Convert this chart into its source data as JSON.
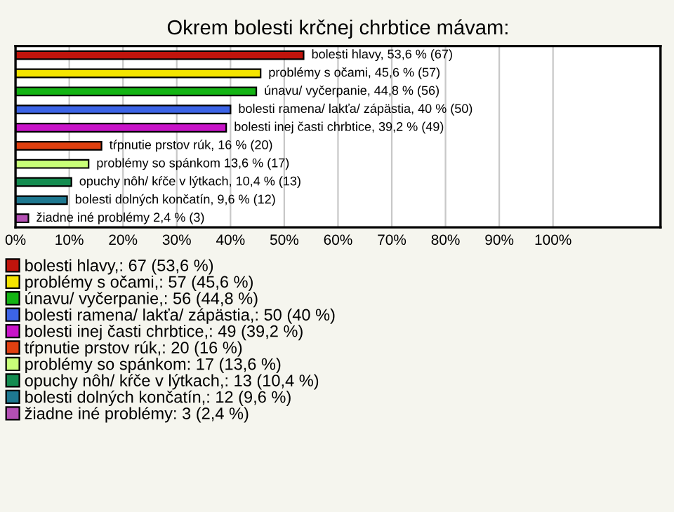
{
  "chart_data": {
    "type": "bar",
    "orientation": "horizontal",
    "title": "Okrem bolesti krčnej chrbtice mávam:",
    "categories": [
      null,
      null,
      null,
      null,
      null,
      null,
      null,
      null,
      null,
      null
    ],
    "series": [
      {
        "name": "bolesti hlavy,: 67 (53,6 %)",
        "color": "#c0140c",
        "values": [
          53.6,
          null,
          null,
          null,
          null,
          null,
          null,
          null,
          null,
          null
        ],
        "value_labels": [
          "bolesti hlavy, 53,6 % (67)",
          null,
          null,
          null,
          null,
          null,
          null,
          null,
          null,
          null
        ]
      },
      {
        "name": "problémy s očami,: 57 (45,6 %)",
        "color": "#f4e400",
        "values": [
          null,
          45.6,
          null,
          null,
          null,
          null,
          null,
          null,
          null,
          null
        ],
        "value_labels": [
          null,
          "problémy s očami, 45,6 % (57)",
          null,
          null,
          null,
          null,
          null,
          null,
          null,
          null
        ]
      },
      {
        "name": "únavu/ vyčerpanie,: 56 (44,8 %)",
        "color": "#14b414",
        "values": [
          null,
          null,
          44.8,
          null,
          null,
          null,
          null,
          null,
          null,
          null
        ],
        "value_labels": [
          null,
          null,
          "únavu/ vyčerpanie, 44,8 % (56)",
          null,
          null,
          null,
          null,
          null,
          null,
          null
        ]
      },
      {
        "name": "bolesti ramena/ lakťa/ zápästia,: 50 (40 %)",
        "color": "#3c64e6",
        "values": [
          null,
          null,
          null,
          40,
          null,
          null,
          null,
          null,
          null,
          null
        ],
        "value_labels": [
          null,
          null,
          null,
          "bolesti ramena/ lakťa/ zápästia, 40 % (50)",
          null,
          null,
          null,
          null,
          null,
          null
        ]
      },
      {
        "name": "bolesti inej časti chrbtice,: 49 (39,2 %)",
        "color": "#c814c8",
        "values": [
          null,
          null,
          null,
          null,
          39.2,
          null,
          null,
          null,
          null,
          null
        ],
        "value_labels": [
          null,
          null,
          null,
          null,
          "bolesti inej časti chrbtice, 39,2 % (49)",
          null,
          null,
          null,
          null,
          null
        ]
      },
      {
        "name": "tŕpnutie prstov rúk,: 20 (16 %)",
        "color": "#e04010",
        "values": [
          null,
          null,
          null,
          null,
          null,
          16,
          null,
          null,
          null,
          null
        ],
        "value_labels": [
          null,
          null,
          null,
          null,
          null,
          "tŕpnutie prstov rúk, 16 % (20)",
          null,
          null,
          null,
          null
        ]
      },
      {
        "name": "problémy so spánkom: 17 (13,6 %)",
        "color": "#c8ff78",
        "values": [
          null,
          null,
          null,
          null,
          null,
          null,
          13.6,
          null,
          null,
          null
        ],
        "value_labels": [
          null,
          null,
          null,
          null,
          null,
          null,
          "problémy so spánkom 13,6 % (17)",
          null,
          null,
          null
        ]
      },
      {
        "name": "opuchy nôh/ kŕče v lýtkach,: 13 (10,4 %)",
        "color": "#148c50",
        "values": [
          null,
          null,
          null,
          null,
          null,
          null,
          null,
          10.4,
          null,
          null
        ],
        "value_labels": [
          null,
          null,
          null,
          null,
          null,
          null,
          null,
          "opuchy nôh/ kŕče v lýtkach, 10,4 % (13)",
          null,
          null
        ]
      },
      {
        "name": "bolesti dolných končatín,: 12 (9,6 %)",
        "color": "#1e7890",
        "values": [
          null,
          null,
          null,
          null,
          null,
          null,
          null,
          null,
          9.6,
          null
        ],
        "value_labels": [
          null,
          null,
          null,
          null,
          null,
          null,
          null,
          null,
          "bolesti dolných končatín, 9,6 % (12)",
          null
        ]
      },
      {
        "name": "žiadne iné problémy: 3 (2,4 %)",
        "color": "#b450b4",
        "values": [
          null,
          null,
          null,
          null,
          null,
          null,
          null,
          null,
          null,
          2.4
        ],
        "value_labels": [
          null,
          null,
          null,
          null,
          null,
          null,
          null,
          null,
          null,
          "žiadne iné problémy 2,4 % (3)"
        ]
      }
    ],
    "xlim": [
      0,
      120
    ],
    "xticks": [
      {
        "value": 0,
        "label": "0%"
      },
      {
        "value": 10,
        "label": "10%"
      },
      {
        "value": 20,
        "label": "20%"
      },
      {
        "value": 30,
        "label": "30%"
      },
      {
        "value": 40,
        "label": "40%"
      },
      {
        "value": 50,
        "label": "50%"
      },
      {
        "value": 60,
        "label": "60%"
      },
      {
        "value": 70,
        "label": "70%"
      },
      {
        "value": 80,
        "label": "80%"
      },
      {
        "value": 90,
        "label": "90%"
      },
      {
        "value": 100,
        "label": "100%"
      }
    ],
    "grid": "x",
    "legend": "bottom",
    "tick_labels": "x"
  }
}
